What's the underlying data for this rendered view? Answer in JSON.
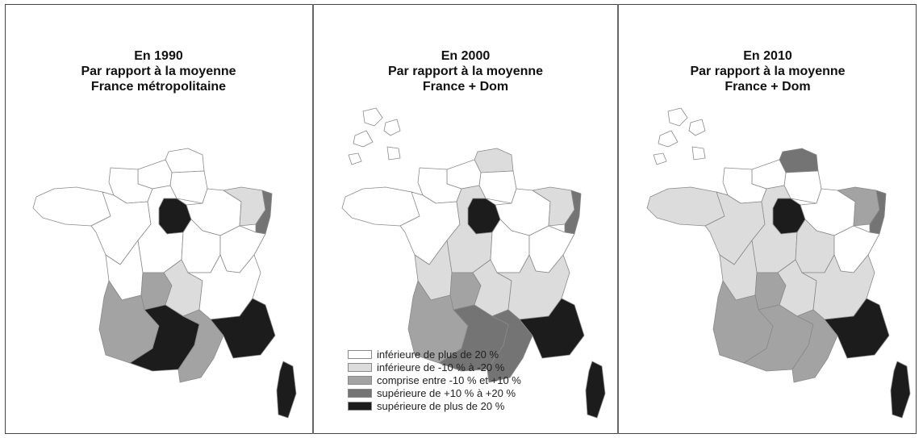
{
  "colors": {
    "c1": "#ffffff",
    "c2": "#dcdcdc",
    "c3": "#a3a3a3",
    "c4": "#747474",
    "c5": "#1c1c1c"
  },
  "panels": [
    {
      "title_line1": "En 1990",
      "title_line2": "Par rapport à la moyenne",
      "title_line3": "France métropolitaine",
      "show_dom": false,
      "regions": {
        "NPC": "c1",
        "PIC": "c1",
        "HNO": "c1",
        "BNO": "c1",
        "BRE": "c1",
        "IDF": "c5",
        "CHA": "c1",
        "LOR": "c2",
        "ALS": "c4",
        "PDL": "c1",
        "CEN": "c1",
        "BOU": "c1",
        "FRC": "c1",
        "POC": "c1",
        "LIM": "c3",
        "AUV": "c2",
        "RHA": "c1",
        "AQU": "c3",
        "MPY": "c5",
        "LRO": "c3",
        "PAC": "c5",
        "COR": "c5"
      }
    },
    {
      "title_line1": "En 2000",
      "title_line2": "Par rapport à la moyenne",
      "title_line3": "France + Dom",
      "show_dom": true,
      "regions": {
        "NPC": "c2",
        "PIC": "c1",
        "HNO": "c1",
        "BNO": "c1",
        "BRE": "c1",
        "IDF": "c5",
        "CHA": "c1",
        "LOR": "c2",
        "ALS": "c4",
        "PDL": "c1",
        "CEN": "c2",
        "BOU": "c1",
        "FRC": "c1",
        "POC": "c2",
        "LIM": "c3",
        "AUV": "c2",
        "RHA": "c2",
        "AQU": "c3",
        "MPY": "c4",
        "LRO": "c4",
        "PAC": "c5",
        "COR": "c5"
      }
    },
    {
      "title_line1": "En 2010",
      "title_line2": "Par rapport à la moyenne",
      "title_line3": "France + Dom",
      "show_dom": true,
      "regions": {
        "NPC": "c4",
        "PIC": "c1",
        "HNO": "c1",
        "BNO": "c1",
        "BRE": "c2",
        "IDF": "c5",
        "CHA": "c1",
        "LOR": "c3",
        "ALS": "c4",
        "PDL": "c2",
        "CEN": "c2",
        "BOU": "c2",
        "FRC": "c1",
        "POC": "c2",
        "LIM": "c3",
        "AUV": "c2",
        "RHA": "c2",
        "AQU": "c3",
        "MPY": "c3",
        "LRO": "c3",
        "PAC": "c5",
        "COR": "c5"
      }
    }
  ],
  "legend": [
    {
      "label": "inférieure de plus de 20 %",
      "color": "c1"
    },
    {
      "label": "inférieure de -10 % à -20 %",
      "color": "c2"
    },
    {
      "label": "comprise entre -10 % et +10 %",
      "color": "c3"
    },
    {
      "label": "supérieure de +10 % à +20 %",
      "color": "c4"
    },
    {
      "label": "supérieure de plus de 20 %",
      "color": "c5"
    }
  ]
}
